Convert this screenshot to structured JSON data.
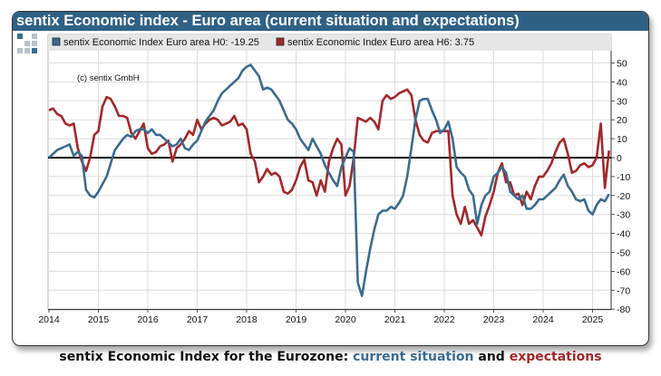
{
  "panel": {
    "title": "sentix Economic index - Euro area (current situation and expectations)",
    "copyright": "(c) sentix  GmbH"
  },
  "caption": {
    "prefix": "sentix Economic Index for the Eurozone: ",
    "part1": "current situation",
    "mid": " and ",
    "part2": "expectations"
  },
  "colors": {
    "title_bar": "#2f6186",
    "h0": "#3b6b91",
    "h6": "#a3282a",
    "zero_line": "#000000"
  },
  "chart_data": {
    "type": "line",
    "frequency": "monthly",
    "start": "2014-01",
    "x_ticks": [
      "2014",
      "2015",
      "2016",
      "2017",
      "2018",
      "2019",
      "2020",
      "2021",
      "2022",
      "2023",
      "2024",
      "2025"
    ],
    "y_ticks": [
      50,
      40,
      30,
      20,
      10,
      0,
      -10,
      -20,
      -30,
      -40,
      -50,
      -60,
      -70,
      -80
    ],
    "ylim": [
      -80,
      55
    ],
    "grid": true,
    "legend_position": "top",
    "series": [
      {
        "name": "sentix Economic Index Euro area H0: -19.25",
        "color": "#3b6b91",
        "values": [
          0,
          2,
          4,
          5,
          6,
          7,
          1,
          3,
          1,
          -17,
          -20,
          -21,
          -18,
          -14,
          -10,
          -3,
          4,
          7,
          10,
          12,
          11,
          14,
          15,
          15,
          13,
          15,
          12,
          12,
          10,
          8,
          6,
          7,
          10,
          5,
          4,
          7,
          9,
          14,
          19,
          22,
          25,
          30,
          34,
          36,
          38,
          40,
          42,
          46,
          48,
          49,
          46,
          43,
          36,
          37,
          36,
          33,
          30,
          25,
          20,
          18,
          15,
          10,
          7,
          4,
          10,
          6,
          2,
          -4,
          -8,
          -12,
          -15,
          -5,
          0,
          5,
          3,
          -66,
          -73,
          -60,
          -48,
          -38,
          -30,
          -28,
          -28,
          -26,
          -27,
          -24,
          -20,
          -10,
          5,
          20,
          30,
          31,
          31,
          25,
          20,
          13,
          15,
          19,
          10,
          -5,
          -8,
          -10,
          -17,
          -20,
          -35,
          -25,
          -20,
          -18,
          -10,
          -8,
          -5,
          -8,
          -18,
          -20,
          -22,
          -20,
          -27,
          -27,
          -25,
          -22,
          -22,
          -20,
          -18,
          -16,
          -12,
          -9,
          -15,
          -18,
          -22,
          -23,
          -22,
          -28,
          -30,
          -25,
          -22,
          -23,
          -19.25
        ]
      },
      {
        "name": "sentix Economic Index Euro area H6: 3.75",
        "color": "#a3282a",
        "values": [
          25,
          26,
          23,
          22,
          18,
          17,
          18,
          5,
          -2,
          -7,
          0,
          12,
          14,
          27,
          32,
          31,
          27,
          22,
          22,
          21,
          13,
          10,
          14,
          18,
          5,
          2,
          3,
          6,
          7,
          9,
          -2,
          5,
          7,
          10,
          14,
          12,
          20,
          15,
          18,
          20,
          21,
          20,
          17,
          18,
          19,
          22,
          17,
          18,
          15,
          2,
          -2,
          -13,
          -10,
          -6,
          -9,
          -8,
          -10,
          -18,
          -19,
          -17,
          -12,
          -5,
          -1,
          -12,
          -13,
          -20,
          -12,
          -18,
          -2,
          5,
          10,
          7,
          -20,
          -15,
          0,
          21,
          20,
          19,
          21,
          19,
          15,
          30,
          33,
          31,
          32,
          34,
          35,
          36,
          33,
          20,
          12,
          9,
          8,
          13,
          14,
          14,
          14,
          14,
          -20,
          -30,
          -35,
          -26,
          -35,
          -33,
          -37,
          -41,
          -31,
          -25,
          -18,
          -8,
          -3,
          -13,
          -13,
          -20,
          -19,
          -25,
          -18,
          -22,
          -15,
          -10,
          -10,
          -7,
          -3,
          3,
          8,
          10,
          2,
          -8,
          -7,
          -4,
          -3,
          -5,
          -4,
          0,
          18,
          -16,
          3.75
        ]
      }
    ]
  }
}
